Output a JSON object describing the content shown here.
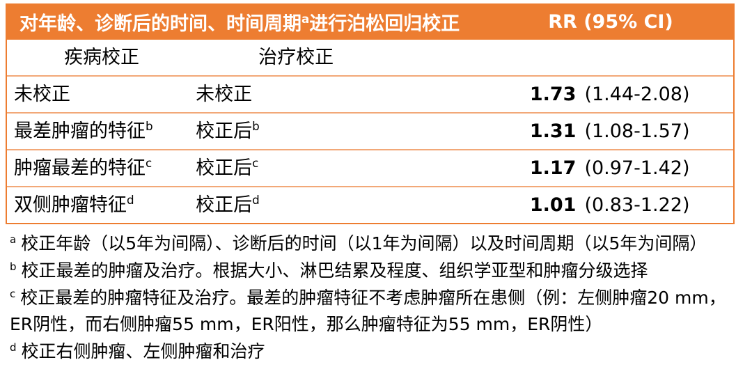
{
  "header": {
    "title_pre": "对年龄、诊断后的时间、时间周期",
    "title_sup": "a",
    "title_post": "进行泊松回归校正",
    "rr_label": "RR (95% CI)"
  },
  "subheader": {
    "disease_label": "疾病校正",
    "treatment_label": "治疗校正"
  },
  "rows": [
    {
      "disease": "未校正",
      "disease_sup": "",
      "treatment": "未校正",
      "treatment_sup": "",
      "rr": "1.73",
      "ci": "(1.44-2.08)"
    },
    {
      "disease": "最差肿瘤的特征",
      "disease_sup": "b",
      "treatment": "校正后",
      "treatment_sup": "b",
      "rr": "1.31",
      "ci": "(1.08-1.57)"
    },
    {
      "disease": "肿瘤最差的特征",
      "disease_sup": "c",
      "treatment": "校正后",
      "treatment_sup": "c",
      "rr": "1.17",
      "ci": "(0.97-1.42)"
    },
    {
      "disease": "双侧肿瘤特征",
      "disease_sup": "d",
      "treatment": "校正后",
      "treatment_sup": "d",
      "rr": "1.01",
      "ci": "(0.83-1.22)"
    }
  ],
  "footnotes": [
    {
      "marker": "a",
      "text": "校正年龄（以5年为间隔）、诊断后的时间（以1年为间隔）以及时间周期（以5年为间隔）"
    },
    {
      "marker": "b",
      "text": "校正最差的肿瘤及治疗。根据大小、淋巴结累及程度、组织学亚型和肿瘤分级选择"
    },
    {
      "marker": "c",
      "text": "校正最差的肿瘤特征及治疗。最差的肿瘤特征不考虑肿瘤所在患侧（例：左侧肿瘤20 mm，ER阴性，而右侧肿瘤55 mm，ER阳性，那么肿瘤特征为55 mm，ER阴性）"
    },
    {
      "marker": "d",
      "text": "校正右侧肿瘤、左侧肿瘤和治疗"
    }
  ],
  "colors": {
    "header_bg": "#ED7D31",
    "header_text": "#FFFFFF",
    "row_border": "#F2A878",
    "body_text": "#000000"
  }
}
